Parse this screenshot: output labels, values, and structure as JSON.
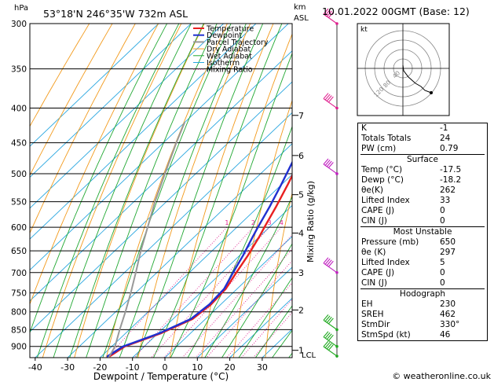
{
  "header": {
    "station": "53°18'N  246°35'W  732m  ASL",
    "datetime": "10.01.2022  00GMT  (Base: 12)",
    "hpa_label": "hPa",
    "km_label": "km",
    "asl_label": "ASL"
  },
  "legend": [
    "Temperature",
    "Dewpoint",
    "Parcel Trajectory",
    "Dry Adiabat",
    "Wet Adiabat",
    "Isotherm",
    "Mixing Ratio"
  ],
  "chart_data": {
    "type": "line",
    "title": "",
    "xlabel": "Dewpoint / Temperature (°C)",
    "ylabel": "hPa",
    "right_label": "Mixing Ratio (g/kg)",
    "x_ticks": [
      -40,
      -30,
      -20,
      -10,
      0,
      10,
      20,
      30
    ],
    "pressure_ticks": [
      300,
      350,
      400,
      450,
      500,
      550,
      600,
      650,
      700,
      750,
      800,
      850,
      900
    ],
    "km_ticks": [
      {
        "label": "1",
        "p": 912
      },
      {
        "label": "2",
        "p": 795
      },
      {
        "label": "3",
        "p": 700
      },
      {
        "label": "4",
        "p": 612
      },
      {
        "label": "5",
        "p": 537
      },
      {
        "label": "6",
        "p": 470
      },
      {
        "label": "7",
        "p": 410
      }
    ],
    "lcl": {
      "label": "LCL",
      "p": 925
    },
    "mixing_ratio_labels": [
      "1",
      "2",
      "3",
      "4",
      "6",
      "8",
      "10",
      "15",
      "20",
      "25"
    ],
    "mixing_ratio_values": [
      1,
      2,
      3,
      4,
      6,
      8,
      10,
      15,
      20,
      25
    ],
    "series": [
      {
        "name": "Temperature",
        "color": "#e82020",
        "points": [
          [
            932,
            -17.5
          ],
          [
            900,
            -16
          ],
          [
            860,
            -9
          ],
          [
            820,
            -4
          ],
          [
            780,
            -3
          ],
          [
            740,
            -3.5
          ],
          [
            700,
            -5.5
          ],
          [
            660,
            -7.5
          ],
          [
            620,
            -10
          ],
          [
            600,
            -11.5
          ],
          [
            560,
            -14.5
          ],
          [
            520,
            -18
          ],
          [
            480,
            -22
          ],
          [
            460,
            -24
          ],
          [
            440,
            -25
          ],
          [
            420,
            -26.5
          ],
          [
            400,
            -28
          ],
          [
            380,
            -31
          ],
          [
            350,
            -35
          ],
          [
            320,
            -40
          ],
          [
            300,
            -43
          ]
        ]
      },
      {
        "name": "Dewpoint",
        "color": "#2030d0",
        "points": [
          [
            932,
            -18.2
          ],
          [
            900,
            -16.5
          ],
          [
            860,
            -9.5
          ],
          [
            820,
            -4.5
          ],
          [
            780,
            -3.5
          ],
          [
            740,
            -4
          ],
          [
            700,
            -6.5
          ],
          [
            660,
            -9
          ],
          [
            620,
            -12
          ],
          [
            600,
            -13.5
          ],
          [
            560,
            -16.5
          ],
          [
            520,
            -20
          ],
          [
            480,
            -24
          ],
          [
            460,
            -26
          ],
          [
            440,
            -27.5
          ],
          [
            420,
            -28.5
          ],
          [
            400,
            -30
          ],
          [
            380,
            -32
          ],
          [
            350,
            -35.5
          ],
          [
            320,
            -40.5
          ],
          [
            300,
            -43.5
          ]
        ]
      },
      {
        "name": "Parcel Trajectory",
        "color": "#999999",
        "points": [
          [
            932,
            -17.5
          ],
          [
            900,
            -19
          ],
          [
            850,
            -23
          ],
          [
            800,
            -27
          ],
          [
            750,
            -31.5
          ],
          [
            700,
            -36.5
          ],
          [
            650,
            -42
          ],
          [
            600,
            -47.5
          ],
          [
            550,
            -53.5
          ],
          [
            500,
            -59.5
          ],
          [
            450,
            -66
          ],
          [
            420,
            -70
          ]
        ]
      }
    ]
  },
  "wind_profile": {
    "barbs": [
      {
        "p": 300
      },
      {
        "p": 400
      },
      {
        "p": 500
      },
      {
        "p": 700
      },
      {
        "p": 850
      },
      {
        "p": 900
      },
      {
        "p": 930
      }
    ]
  },
  "hodograph": {
    "unit_label": "kt",
    "ring_labels": [
      "20",
      "40",
      "60",
      "80",
      "100",
      "120"
    ]
  },
  "indices": {
    "rows": [
      {
        "label": "K",
        "value": "-1"
      },
      {
        "label": "Totals Totals",
        "value": "24"
      },
      {
        "label": "PW (cm)",
        "value": "0.79"
      }
    ],
    "surface": {
      "title": "Surface",
      "rows": [
        {
          "label": "Temp (°C)",
          "value": "-17.5"
        },
        {
          "label": "Dewp (°C)",
          "value": "-18.2"
        },
        {
          "label": "θe(K)",
          "value": "262"
        },
        {
          "label": "Lifted Index",
          "value": "33"
        },
        {
          "label": "CAPE (J)",
          "value": "0"
        },
        {
          "label": "CIN (J)",
          "value": "0"
        }
      ]
    },
    "most_unstable": {
      "title": "Most Unstable",
      "rows": [
        {
          "label": "Pressure (mb)",
          "value": "650"
        },
        {
          "label": "θe (K)",
          "value": "297"
        },
        {
          "label": "Lifted Index",
          "value": "5"
        },
        {
          "label": "CAPE (J)",
          "value": "0"
        },
        {
          "label": "CIN (J)",
          "value": "0"
        }
      ]
    },
    "hodograph_section": {
      "title": "Hodograph",
      "rows": [
        {
          "label": "EH",
          "value": "230"
        },
        {
          "label": "SREH",
          "value": "462"
        },
        {
          "label": "StmDir",
          "value": "330°"
        },
        {
          "label": "StmSpd (kt)",
          "value": "46"
        }
      ]
    }
  },
  "footer": {
    "copyright": "© weatheronline.co.uk"
  }
}
